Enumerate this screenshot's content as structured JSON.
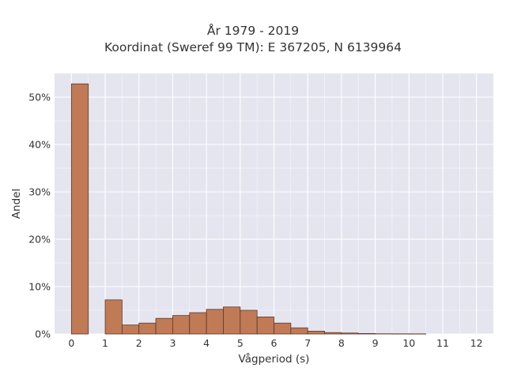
{
  "chart_data": {
    "type": "bar",
    "title": "År 1979 - 2019",
    "subtitle": "Koordinat (Sweref 99 TM): E 367205, N 6139964",
    "xlabel": "Vågperiod (s)",
    "ylabel": "Andel",
    "xlim": [
      -0.5,
      12.5
    ],
    "ylim": [
      0,
      55
    ],
    "x_ticks": [
      "0",
      "1",
      "2",
      "3",
      "4",
      "5",
      "6",
      "7",
      "8",
      "9",
      "10",
      "11",
      "12"
    ],
    "y_ticks": [
      "0%",
      "10%",
      "20%",
      "30%",
      "40%",
      "50%"
    ],
    "bin_width": 0.5,
    "bins": [
      {
        "start": 0.0,
        "end": 0.5,
        "value": 52.8
      },
      {
        "start": 1.0,
        "end": 1.5,
        "value": 7.2
      },
      {
        "start": 1.5,
        "end": 2.0,
        "value": 1.9
      },
      {
        "start": 2.0,
        "end": 2.5,
        "value": 2.3
      },
      {
        "start": 2.5,
        "end": 3.0,
        "value": 3.3
      },
      {
        "start": 3.0,
        "end": 3.5,
        "value": 3.9
      },
      {
        "start": 3.5,
        "end": 4.0,
        "value": 4.5
      },
      {
        "start": 4.0,
        "end": 4.5,
        "value": 5.2
      },
      {
        "start": 4.5,
        "end": 5.0,
        "value": 5.7
      },
      {
        "start": 5.0,
        "end": 5.5,
        "value": 5.0
      },
      {
        "start": 5.5,
        "end": 6.0,
        "value": 3.6
      },
      {
        "start": 6.0,
        "end": 6.5,
        "value": 2.3
      },
      {
        "start": 6.5,
        "end": 7.0,
        "value": 1.3
      },
      {
        "start": 7.0,
        "end": 7.5,
        "value": 0.6
      },
      {
        "start": 7.5,
        "end": 8.0,
        "value": 0.3
      },
      {
        "start": 8.0,
        "end": 8.5,
        "value": 0.2
      },
      {
        "start": 8.5,
        "end": 9.0,
        "value": 0.1
      },
      {
        "start": 9.0,
        "end": 9.5,
        "value": 0.05
      },
      {
        "start": 9.5,
        "end": 10.0,
        "value": 0.04
      },
      {
        "start": 10.0,
        "end": 10.5,
        "value": 0.03
      }
    ],
    "grid": true,
    "colors": {
      "bar_fill": "#c07a56",
      "bar_stroke": "#5a3a28",
      "plot_background": "#e5e5f0",
      "grid": "#ffffff"
    }
  }
}
